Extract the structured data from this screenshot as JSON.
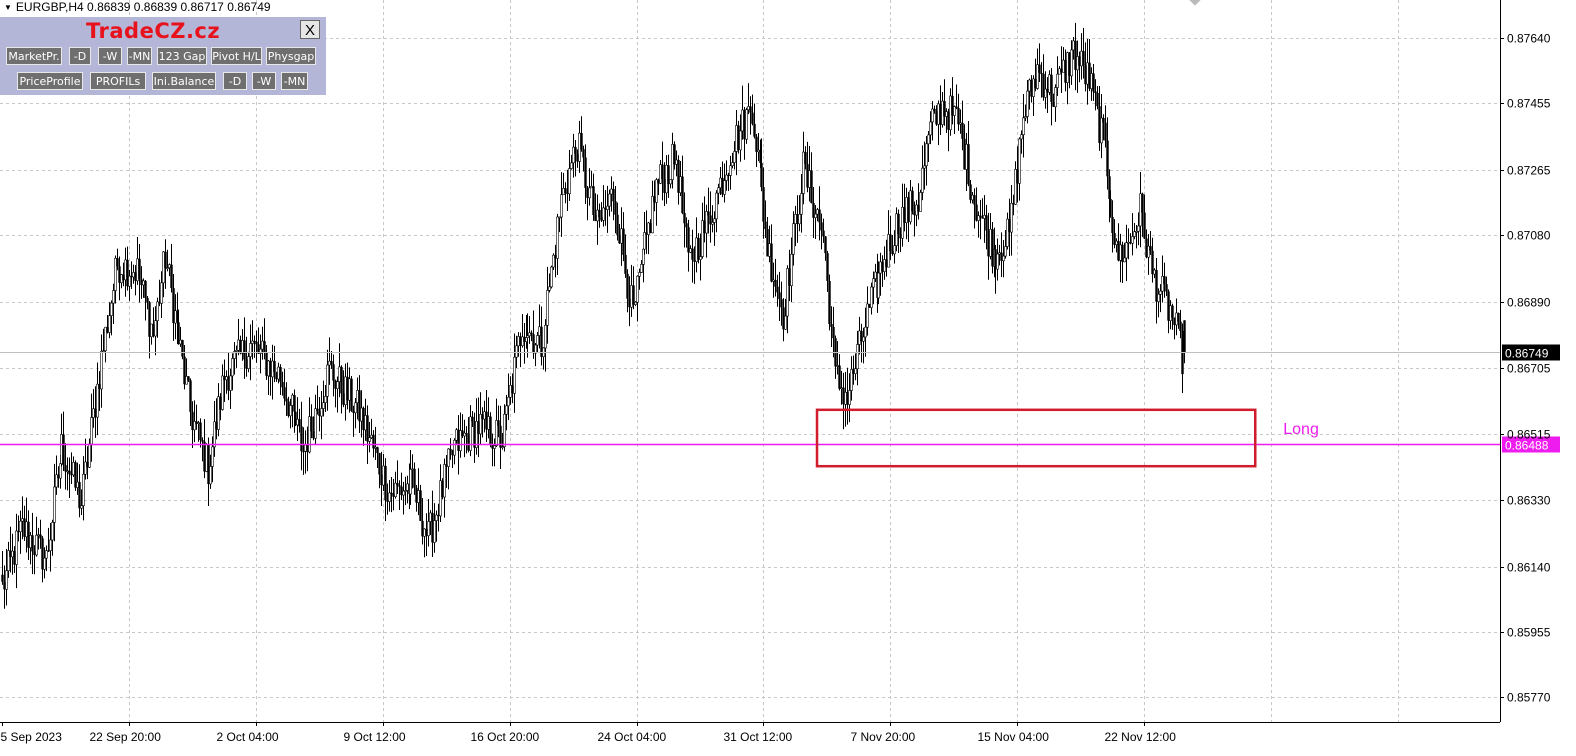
{
  "window": {
    "symbol_info": "EURGBP,H4  0.86839 0.86839 0.86717 0.86749"
  },
  "panel": {
    "brand": "TradeCZ.cz",
    "close_label": "X",
    "row1": [
      "MarketPr.",
      "-D",
      "-W",
      "-MN",
      "123 Gap",
      "Pivot H/L",
      "Physgap"
    ],
    "row2": [
      "PriceProfile",
      "PROFILs",
      "Ini.Balance",
      "-D",
      "-W",
      "-MN"
    ]
  },
  "colors": {
    "background": "#ffffff",
    "grid": "#c8c8c8",
    "candle": "#000000",
    "level_line": "#ee1cee",
    "zone_border": "#d01c2c",
    "current_price_bg": "#000000",
    "panel_bg": "#b3b6d6",
    "brand": "#e8121d"
  },
  "chart_data": {
    "type": "candlestick",
    "symbol": "EURGBP",
    "timeframe": "H4",
    "ylim": [
      0.8568,
      0.8772
    ],
    "y_ticks": [
      "0.87640",
      "0.87455",
      "0.87265",
      "0.87080",
      "0.86890",
      "0.86705",
      "0.86515",
      "0.86330",
      "0.86140",
      "0.85955",
      "0.85770"
    ],
    "x_ticks": [
      {
        "label": "5 Sep 2023",
        "bar": 0
      },
      {
        "label": "22 Sep 20:00",
        "bar": 64
      },
      {
        "label": "2 Oct 04:00",
        "bar": 128
      },
      {
        "label": "9 Oct 12:00",
        "bar": 192
      },
      {
        "label": "16 Oct 20:00",
        "bar": 256
      },
      {
        "label": "24 Oct 04:00",
        "bar": 320
      },
      {
        "label": "31 Oct 12:00",
        "bar": 384
      },
      {
        "label": "7 Nov 20:00",
        "bar": 448
      },
      {
        "label": "15 Nov 04:00",
        "bar": 512
      },
      {
        "label": "22 Nov 12:00",
        "bar": 576
      }
    ],
    "current_price": {
      "value": 0.86749,
      "label": "0.86749"
    },
    "horizontal_line": {
      "value": 0.86488,
      "label": "0.86488"
    },
    "zone": {
      "bar_start": 411,
      "bar_end": 632,
      "top": 0.86585,
      "bottom": 0.86425,
      "label": "Long"
    },
    "anchors": [
      {
        "bar": 0,
        "price": 0.8608
      },
      {
        "bar": 10,
        "price": 0.8625
      },
      {
        "bar": 22,
        "price": 0.8616
      },
      {
        "bar": 30,
        "price": 0.8648
      },
      {
        "bar": 40,
        "price": 0.8632
      },
      {
        "bar": 50,
        "price": 0.8673
      },
      {
        "bar": 58,
        "price": 0.87
      },
      {
        "bar": 68,
        "price": 0.8698
      },
      {
        "bar": 76,
        "price": 0.868
      },
      {
        "bar": 82,
        "price": 0.8702
      },
      {
        "bar": 95,
        "price": 0.8658
      },
      {
        "bar": 104,
        "price": 0.8642
      },
      {
        "bar": 112,
        "price": 0.8668
      },
      {
        "bar": 125,
        "price": 0.8677
      },
      {
        "bar": 140,
        "price": 0.8668
      },
      {
        "bar": 152,
        "price": 0.8647
      },
      {
        "bar": 165,
        "price": 0.867
      },
      {
        "bar": 180,
        "price": 0.8658
      },
      {
        "bar": 195,
        "price": 0.8635
      },
      {
        "bar": 207,
        "price": 0.8637
      },
      {
        "bar": 215,
        "price": 0.8622
      },
      {
        "bar": 228,
        "price": 0.8648
      },
      {
        "bar": 240,
        "price": 0.8654
      },
      {
        "bar": 252,
        "price": 0.865
      },
      {
        "bar": 262,
        "price": 0.8683
      },
      {
        "bar": 272,
        "price": 0.8677
      },
      {
        "bar": 282,
        "price": 0.8718
      },
      {
        "bar": 290,
        "price": 0.8734
      },
      {
        "bar": 300,
        "price": 0.871
      },
      {
        "bar": 308,
        "price": 0.872
      },
      {
        "bar": 318,
        "price": 0.8685
      },
      {
        "bar": 330,
        "price": 0.8722
      },
      {
        "bar": 340,
        "price": 0.873
      },
      {
        "bar": 346,
        "price": 0.87
      },
      {
        "bar": 356,
        "price": 0.8712
      },
      {
        "bar": 368,
        "price": 0.8733
      },
      {
        "bar": 378,
        "price": 0.8745
      },
      {
        "bar": 386,
        "price": 0.8705
      },
      {
        "bar": 394,
        "price": 0.8686
      },
      {
        "bar": 404,
        "price": 0.8727
      },
      {
        "bar": 414,
        "price": 0.8708
      },
      {
        "bar": 420,
        "price": 0.8668
      },
      {
        "bar": 426,
        "price": 0.8662
      },
      {
        "bar": 436,
        "price": 0.8685
      },
      {
        "bar": 444,
        "price": 0.87
      },
      {
        "bar": 452,
        "price": 0.8712
      },
      {
        "bar": 462,
        "price": 0.8718
      },
      {
        "bar": 468,
        "price": 0.8738
      },
      {
        "bar": 474,
        "price": 0.8745
      },
      {
        "bar": 482,
        "price": 0.874
      },
      {
        "bar": 490,
        "price": 0.8718
      },
      {
        "bar": 500,
        "price": 0.8703
      },
      {
        "bar": 508,
        "price": 0.8708
      },
      {
        "bar": 515,
        "price": 0.8742
      },
      {
        "bar": 522,
        "price": 0.8755
      },
      {
        "bar": 530,
        "price": 0.8748
      },
      {
        "bar": 540,
        "price": 0.876
      },
      {
        "bar": 548,
        "price": 0.8752
      },
      {
        "bar": 556,
        "price": 0.8732
      },
      {
        "bar": 562,
        "price": 0.8702
      },
      {
        "bar": 568,
        "price": 0.8705
      },
      {
        "bar": 574,
        "price": 0.8715
      },
      {
        "bar": 580,
        "price": 0.8697
      },
      {
        "bar": 590,
        "price": 0.8685
      },
      {
        "bar": 595,
        "price": 0.8674
      }
    ],
    "last_candle": {
      "open": 0.86839,
      "high": 0.86839,
      "low": 0.86717,
      "close": 0.86749
    }
  }
}
